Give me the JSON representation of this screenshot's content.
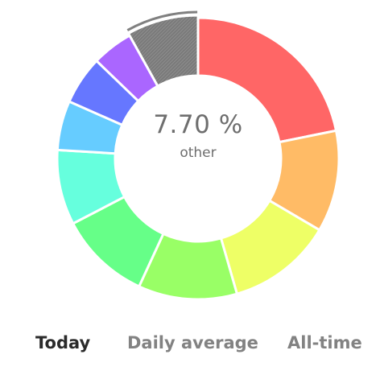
{
  "donut": {
    "center_value": "7.70 %",
    "center_label": "other",
    "segments": [
      {
        "color": "#ff6666",
        "share": 20.8
      },
      {
        "color": "#ffbb66",
        "share": 11.1
      },
      {
        "color": "#eeff66",
        "share": 11.5
      },
      {
        "color": "#99ff66",
        "share": 10.8
      },
      {
        "color": "#66ff88",
        "share": 10.0
      },
      {
        "color": "#66ffdd",
        "share": 8.2
      },
      {
        "color": "#66ccff",
        "share": 5.4
      },
      {
        "color": "#6677ff",
        "share": 5.3
      },
      {
        "color": "#aa66ff",
        "share": 4.5
      },
      {
        "color": "#808080",
        "share": 7.7,
        "hatched": true,
        "selected": true
      }
    ]
  },
  "tabs": {
    "today": "Today",
    "daily_average": "Daily average",
    "all_time": "All-time",
    "active": "today"
  }
}
